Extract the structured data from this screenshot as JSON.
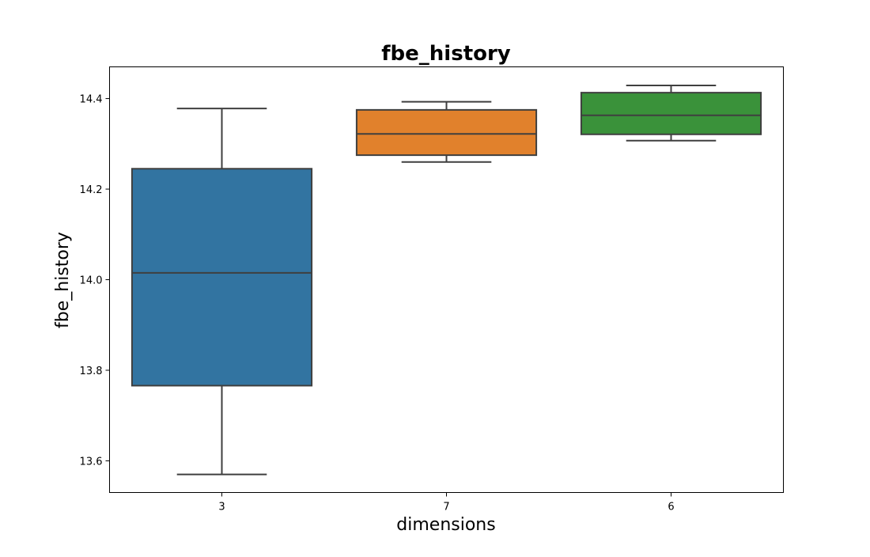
{
  "chart_data": {
    "type": "box",
    "title": "fbe_history",
    "xlabel": "dimensions",
    "ylabel": "fbe_history",
    "categories": [
      "3",
      "7",
      "6"
    ],
    "ylim": [
      13.53,
      14.47
    ],
    "yticks": [
      13.6,
      13.8,
      14.0,
      14.2,
      14.4
    ],
    "ytick_labels": [
      "13.6",
      "13.8",
      "14.0",
      "14.2",
      "14.4"
    ],
    "boxes": [
      {
        "category": "3",
        "whisker_low": 13.57,
        "q1": 13.766,
        "median": 14.015,
        "q3": 14.245,
        "whisker_high": 14.378,
        "color": "#3274a1"
      },
      {
        "category": "7",
        "whisker_low": 14.26,
        "q1": 14.275,
        "median": 14.322,
        "q3": 14.375,
        "whisker_high": 14.393,
        "color": "#e1812c"
      },
      {
        "category": "6",
        "whisker_low": 14.307,
        "q1": 14.321,
        "median": 14.363,
        "q3": 14.413,
        "whisker_high": 14.429,
        "color": "#3a923a"
      }
    ],
    "grid": false,
    "line_color": "#3f3f3f"
  }
}
